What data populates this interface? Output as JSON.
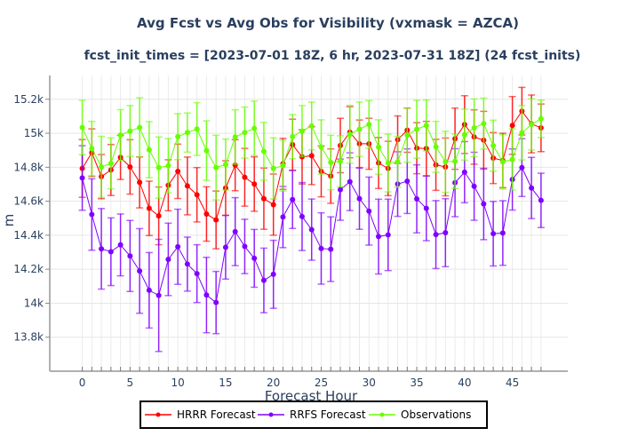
{
  "chart_data": {
    "type": "line",
    "title": "Avg Fcst vs Avg Obs for Visibility (vxmask = AZCA)",
    "subtitle": "fcst_init_times = [2023-07-01 18Z, 6 hr, 2023-07-31 18Z] (24 fcst_inits)",
    "xlabel": "Forecast Hour",
    "ylabel": "m",
    "xlim": [
      -3.4,
      50.8
    ],
    "ylim": [
      13600,
      15340
    ],
    "xticks": [
      0,
      5,
      10,
      15,
      20,
      25,
      30,
      35,
      40,
      45
    ],
    "xtick_labels": [
      "0",
      "5",
      "10",
      "15",
      "20",
      "25",
      "30",
      "35",
      "40",
      "45"
    ],
    "yticks": [
      13800,
      14000,
      14200,
      14400,
      14600,
      14800,
      15000,
      15200
    ],
    "ytick_labels": [
      "13.8k",
      "14k",
      "14.2k",
      "14.4k",
      "14.6k",
      "14.8k",
      "15k",
      "15.2k"
    ],
    "grid": true,
    "legend_position": "bottom-center",
    "x": [
      0,
      1,
      2,
      3,
      4,
      5,
      6,
      7,
      8,
      9,
      10,
      11,
      12,
      13,
      14,
      15,
      16,
      17,
      18,
      19,
      20,
      21,
      22,
      23,
      24,
      25,
      26,
      27,
      28,
      29,
      30,
      31,
      32,
      33,
      34,
      35,
      36,
      37,
      38,
      39,
      40,
      41,
      42,
      43,
      44,
      45,
      46,
      47,
      48
    ],
    "series": [
      {
        "name": "HRRR Forecast",
        "color": "#ff0000",
        "values": [
          14793,
          14886,
          14745,
          14784,
          14858,
          14802,
          14711,
          14558,
          14514,
          14694,
          14776,
          14690,
          14638,
          14525,
          14490,
          14678,
          14812,
          14741,
          14701,
          14615,
          14580,
          14820,
          14933,
          14861,
          14868,
          14776,
          14748,
          14928,
          15006,
          14938,
          14938,
          14825,
          14793,
          14962,
          15018,
          14912,
          14910,
          14814,
          14802,
          14968,
          15051,
          14978,
          14959,
          14854,
          14840,
          15046,
          15130,
          15055,
          15032
        ],
        "errors": [
          170,
          140,
          130,
          150,
          130,
          160,
          150,
          160,
          170,
          150,
          160,
          170,
          160,
          160,
          170,
          160,
          150,
          170,
          160,
          180,
          180,
          150,
          150,
          160,
          170,
          150,
          160,
          160,
          150,
          140,
          150,
          150,
          160,
          140,
          130,
          150,
          160,
          150,
          170,
          180,
          170,
          160,
          170,
          150,
          160,
          170,
          140,
          170,
          140
        ]
      },
      {
        "name": "RRFS Forecast",
        "color": "#7f00ff",
        "values": [
          14737,
          14522,
          14320,
          14303,
          14343,
          14278,
          14190,
          14076,
          14046,
          14258,
          14332,
          14230,
          14174,
          14048,
          14004,
          14329,
          14421,
          14334,
          14264,
          14134,
          14170,
          14507,
          14610,
          14510,
          14433,
          14322,
          14318,
          14668,
          14715,
          14615,
          14542,
          14392,
          14402,
          14701,
          14718,
          14614,
          14558,
          14404,
          14415,
          14709,
          14771,
          14688,
          14584,
          14409,
          14413,
          14728,
          14798,
          14678,
          14605
        ],
        "errors": [
          190,
          210,
          237,
          199,
          182,
          209,
          249,
          222,
          330,
          213,
          221,
          159,
          170,
          222,
          183,
          187,
          200,
          160,
          170,
          190,
          200,
          180,
          170,
          200,
          180,
          210,
          190,
          180,
          170,
          180,
          200,
          220,
          210,
          190,
          190,
          200,
          190,
          200,
          200,
          200,
          180,
          200,
          210,
          190,
          190,
          180,
          170,
          180,
          160
        ]
      },
      {
        "name": "Observations",
        "color": "#66ff00",
        "values": [
          15034,
          14910,
          14802,
          14823,
          14989,
          15013,
          15034,
          14903,
          14798,
          14809,
          14980,
          15004,
          15025,
          14898,
          14798,
          14816,
          14978,
          15004,
          15029,
          14894,
          14793,
          14810,
          14980,
          15013,
          15043,
          14919,
          14828,
          14835,
          14994,
          15024,
          15052,
          14919,
          14825,
          14832,
          14989,
          15024,
          15046,
          14920,
          14832,
          14835,
          14992,
          15032,
          15057,
          14927,
          14832,
          14846,
          15003,
          15052,
          15085
        ],
        "errors": [
          160,
          160,
          180,
          150,
          150,
          150,
          175,
          165,
          180,
          160,
          135,
          115,
          155,
          175,
          190,
          150,
          160,
          150,
          160,
          170,
          180,
          150,
          130,
          150,
          140,
          160,
          160,
          150,
          170,
          160,
          140,
          160,
          170,
          150,
          160,
          170,
          150,
          150,
          180,
          160,
          150,
          170,
          150,
          150,
          160,
          180,
          160,
          150,
          110
        ]
      }
    ]
  }
}
